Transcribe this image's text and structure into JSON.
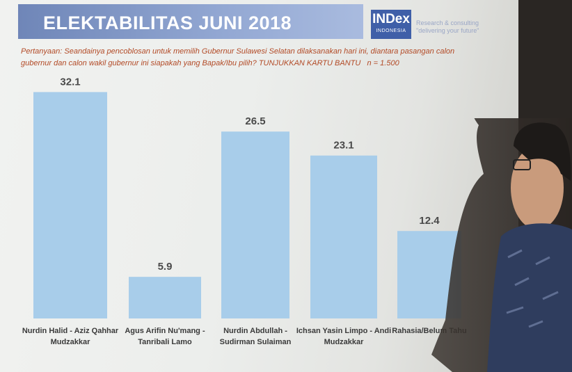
{
  "slide": {
    "title": "ELEKTABILITAS JUNI 2018",
    "logo": {
      "main": "INDex",
      "sub": "INDONESIA"
    },
    "tagline": [
      "Research & consulting",
      "\"delivering your future\""
    ],
    "question": "Pertanyaan: Seandainya pencoblosan untuk memilih Gubernur Sulawesi Selatan dilaksanakan hari ini, diantara pasangan calon gubernur dan calon wakil gubernur ini siapakah yang Bapak/Ibu pilih? TUNJUKKAN KARTU BANTU",
    "sample": "n = 1.500"
  },
  "colors": {
    "bar": "#a8cdea",
    "title_bar": "#8ea3cf",
    "logo": "#3f5fa8",
    "question_text": "#b24a26",
    "value_text": "#4a4a4a",
    "label_text": "#3a3a3a"
  },
  "chart_data": {
    "type": "bar",
    "title": "ELEKTABILITAS JUNI 2018",
    "categories": [
      [
        "Nurdin Halid - Aziz Qahhar",
        "Mudzakkar"
      ],
      [
        "Agus Arifin Nu'mang -",
        "Tanribali Lamo"
      ],
      [
        "Nurdin Abdullah -",
        "Sudirman Sulaiman"
      ],
      [
        "Ichsan Yasin Limpo - Andi",
        "Mudzakkar"
      ],
      [
        "Rahasia/Belum Tahu"
      ]
    ],
    "values": [
      32.1,
      5.9,
      26.5,
      23.1,
      12.4
    ],
    "value_labels": [
      "32.1",
      "5.9",
      "26.5",
      "23.1",
      "12.4"
    ],
    "ylim": [
      0,
      35
    ],
    "grid": false,
    "legend": "none"
  }
}
